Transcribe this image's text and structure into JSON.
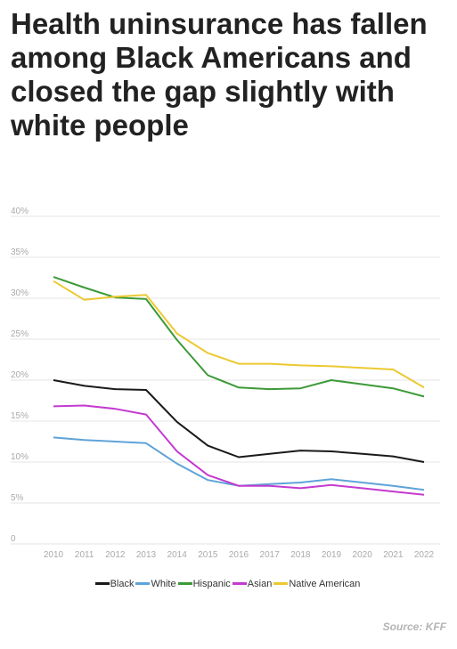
{
  "chart_data": {
    "type": "line",
    "title": "Health uninsurance has fallen among Black Americans and closed the gap slightly with white people",
    "x": [
      2010,
      2011,
      2012,
      2013,
      2014,
      2015,
      2016,
      2017,
      2018,
      2019,
      2020,
      2021,
      2022
    ],
    "y_ticks": [
      "0",
      "5%",
      "10%",
      "15%",
      "20%",
      "25%",
      "30%",
      "35%",
      "40%"
    ],
    "ylim": [
      0,
      40
    ],
    "grid": true,
    "legend_position": "bottom",
    "series": [
      {
        "name": "Black",
        "color": "#1a1a1a",
        "values": [
          20.0,
          19.3,
          18.9,
          18.8,
          14.9,
          12.0,
          10.6,
          11.0,
          11.4,
          11.3,
          11.0,
          10.7,
          10.0
        ]
      },
      {
        "name": "White",
        "color": "#5fa3d8",
        "values": [
          13.0,
          12.7,
          12.5,
          12.3,
          9.8,
          7.8,
          7.1,
          7.3,
          7.5,
          7.9,
          7.5,
          7.1,
          6.6
        ]
      },
      {
        "name": "Hispanic",
        "color": "#3c9a37",
        "values": [
          32.6,
          31.3,
          30.1,
          29.9,
          24.9,
          20.6,
          19.1,
          18.9,
          19.0,
          20.0,
          19.5,
          19.0,
          18.0
        ]
      },
      {
        "name": "Asian",
        "color": "#c43ad0",
        "values": [
          16.8,
          16.9,
          16.5,
          15.8,
          11.3,
          8.4,
          7.1,
          7.1,
          6.8,
          7.2,
          6.8,
          6.4,
          6.0
        ]
      },
      {
        "name": "Native American",
        "color": "#ecc931",
        "values": [
          32.1,
          29.8,
          30.2,
          30.4,
          25.7,
          23.3,
          22.0,
          22.0,
          21.8,
          21.7,
          21.5,
          21.3,
          19.1
        ]
      }
    ],
    "source": "Source: KFF"
  }
}
